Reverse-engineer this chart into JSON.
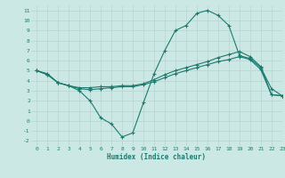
{
  "x": [
    0,
    1,
    2,
    3,
    4,
    5,
    6,
    7,
    8,
    9,
    10,
    11,
    12,
    13,
    14,
    15,
    16,
    17,
    18,
    19,
    20,
    21,
    22,
    23
  ],
  "line1": [
    5.0,
    4.7,
    3.8,
    3.5,
    3.0,
    2.0,
    0.3,
    -0.3,
    -1.6,
    -1.2,
    1.8,
    4.7,
    7.0,
    9.0,
    9.5,
    10.7,
    11.0,
    10.5,
    9.5,
    6.5,
    6.2,
    5.3,
    3.2,
    2.5
  ],
  "line2": [
    5.0,
    4.6,
    3.8,
    3.5,
    3.3,
    3.3,
    3.4,
    3.4,
    3.5,
    3.5,
    3.7,
    4.1,
    4.6,
    5.0,
    5.3,
    5.6,
    5.9,
    6.3,
    6.6,
    6.9,
    6.4,
    5.4,
    2.6,
    2.5
  ],
  "line3": [
    5.0,
    4.6,
    3.8,
    3.5,
    3.2,
    3.1,
    3.2,
    3.3,
    3.4,
    3.4,
    3.6,
    3.9,
    4.3,
    4.7,
    5.0,
    5.3,
    5.6,
    5.9,
    6.1,
    6.4,
    6.1,
    5.1,
    2.6,
    2.5
  ],
  "bg_color": "#cce8e5",
  "grid_color": "#b8d8d5",
  "line_color": "#1a7a6e",
  "xlabel": "Humidex (Indice chaleur)",
  "xlim": [
    -0.5,
    23
  ],
  "ylim": [
    -2.5,
    11.5
  ],
  "xticks": [
    0,
    1,
    2,
    3,
    4,
    5,
    6,
    7,
    8,
    9,
    10,
    11,
    12,
    13,
    14,
    15,
    16,
    17,
    18,
    19,
    20,
    21,
    22,
    23
  ],
  "yticks": [
    -2,
    -1,
    0,
    1,
    2,
    3,
    4,
    5,
    6,
    7,
    8,
    9,
    10,
    11
  ]
}
